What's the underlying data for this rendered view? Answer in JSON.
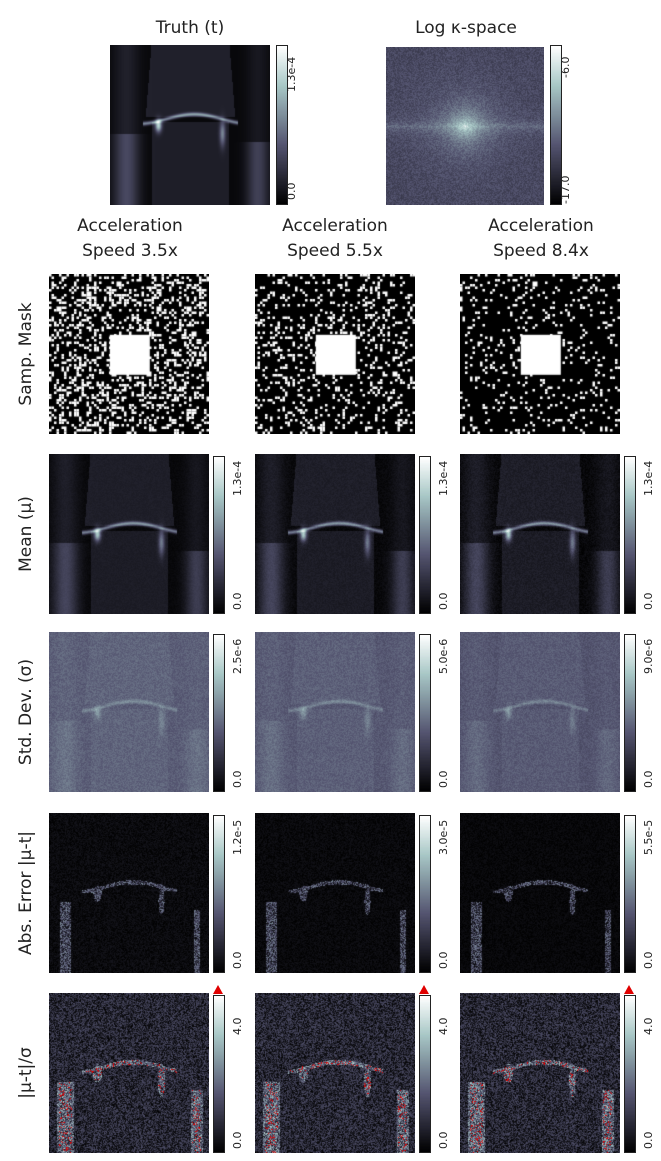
{
  "top": {
    "truth_title": "Truth (t)",
    "kspace_title": "Log κ-space",
    "truth_cbar": {
      "max": "1.3e-4",
      "min": "0.0"
    },
    "kspace_cbar": {
      "max": "-6.0",
      "min": "-17.0"
    }
  },
  "columns": [
    {
      "line1": "Acceleration",
      "line2": "Speed 3.5x",
      "mask_density": 0.29,
      "noise": 0.35
    },
    {
      "line1": "Acceleration",
      "line2": "Speed 5.5x",
      "mask_density": 0.18,
      "noise": 0.55
    },
    {
      "line1": "Acceleration",
      "line2": "Speed 8.4x",
      "mask_density": 0.12,
      "noise": 0.75
    }
  ],
  "rows": [
    {
      "label": "Samp. Mask"
    },
    {
      "label": "Mean (μ)",
      "cbars": [
        {
          "max": "1.3e-4",
          "min": "0.0"
        },
        {
          "max": "1.3e-4",
          "min": "0.0"
        },
        {
          "max": "1.3e-4",
          "min": "0.0"
        }
      ]
    },
    {
      "label": "Std. Dev. (σ)",
      "cbars": [
        {
          "max": "2.5e-6",
          "min": "0.0"
        },
        {
          "max": "5.0e-6",
          "min": "0.0"
        },
        {
          "max": "9.0e-6",
          "min": "0.0"
        }
      ]
    },
    {
      "label": "Abs. Error |μ-t|",
      "cbars": [
        {
          "max": "1.2e-5",
          "min": "0.0"
        },
        {
          "max": "3.0e-5",
          "min": "0.0"
        },
        {
          "max": "5.5e-5",
          "min": "0.0"
        }
      ]
    },
    {
      "label": "|μ-t|/σ",
      "cbars": [
        {
          "max": "4.0",
          "min": "0.0"
        },
        {
          "max": "4.0",
          "min": "0.0"
        },
        {
          "max": "4.0",
          "min": "0.0"
        }
      ]
    }
  ],
  "colors": {
    "overflow": "#e00000",
    "background": "#ffffff"
  }
}
